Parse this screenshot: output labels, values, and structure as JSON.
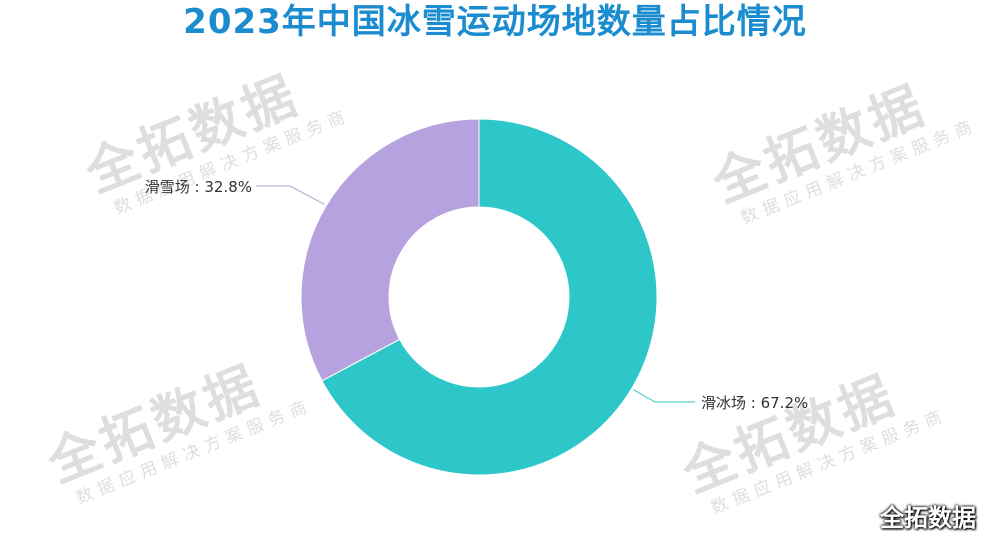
{
  "title": "2023年中国冰雪运动场地数量占比情况",
  "watermark": {
    "main": "全拓数据",
    "sub": "数据应用解决方案服务商"
  },
  "corner_logo": "全拓数据",
  "chart_data": {
    "type": "pie",
    "subtype": "donut",
    "title": "2023年中国冰雪运动场地数量占比情况",
    "series": [
      {
        "name": "滑冰场",
        "value": 67.2,
        "label": "滑冰场 : 67.2%",
        "color": "#2ec7c9"
      },
      {
        "name": "滑雪场",
        "value": 32.8,
        "label": "滑雪场 : 32.8%",
        "color": "#b6a2de"
      }
    ],
    "legend": "none",
    "start": "top",
    "direction": "clockwise"
  }
}
